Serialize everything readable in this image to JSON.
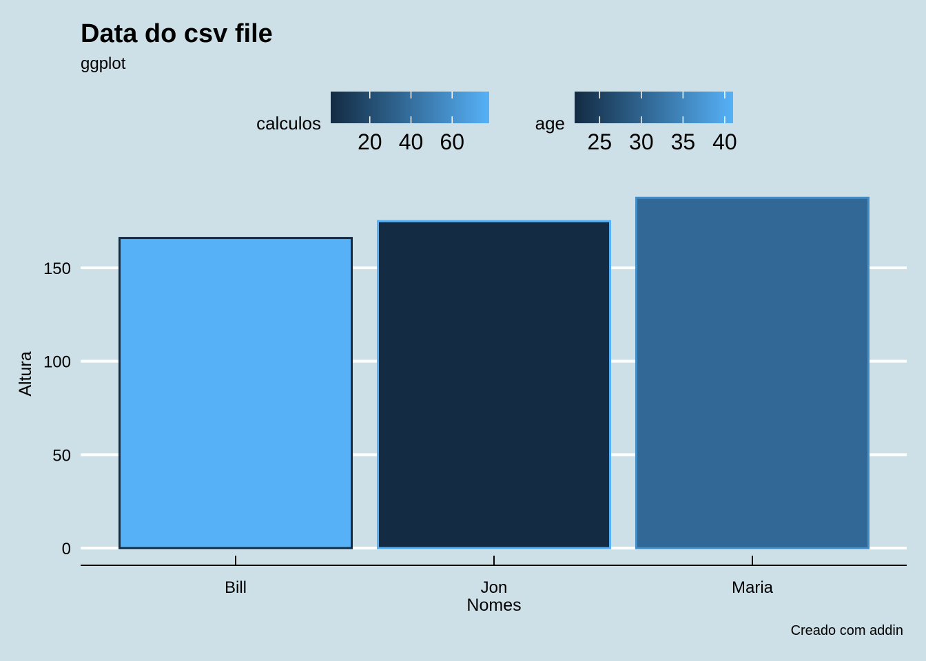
{
  "chart_data": {
    "type": "bar",
    "title": "Data do csv file",
    "subtitle": "ggplot",
    "caption": "Creado com addin",
    "xlabel": "Nomes",
    "ylabel": "Altura",
    "categories": [
      "Bill",
      "Jon",
      "Maria"
    ],
    "values": [
      166,
      175,
      187.5
    ],
    "ylim": [
      0,
      190
    ],
    "yticks": [
      0,
      50,
      100,
      150
    ],
    "bar_fill_scale": {
      "name": "calculos",
      "fill_values": [
        78,
        1,
        36
      ],
      "domain": [
        1,
        78
      ],
      "ticks": [
        20,
        40,
        60
      ],
      "colors": [
        "#132b43",
        "#56b1f7"
      ]
    },
    "bar_outline_scale": {
      "name": "age",
      "outline_values": [
        22,
        41,
        36
      ],
      "domain": [
        22,
        41
      ],
      "ticks": [
        25,
        30,
        35,
        40
      ],
      "colors": [
        "#132b43",
        "#56b1f7"
      ]
    },
    "legend_position": "top",
    "grid": "horizontal major",
    "colors": {
      "background": "#cde0e7",
      "gridline": "#ffffff",
      "low": "#132b43",
      "high": "#56b1f7"
    }
  }
}
